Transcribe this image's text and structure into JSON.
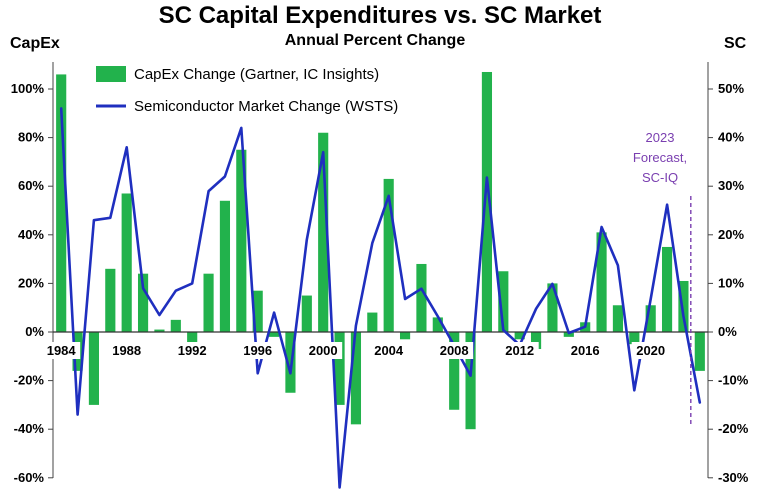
{
  "chart_data": {
    "type": "bar+line",
    "title": "SC Capital Expenditures vs. SC Market",
    "subtitle": "Annual Percent Change",
    "left_axis_label": "CapEx",
    "right_axis_label": "SC",
    "left_ylim": [
      -60,
      110
    ],
    "right_ylim": [
      -30,
      55
    ],
    "left_ticks": [
      "100%",
      "80%",
      "60%",
      "40%",
      "20%",
      "0%",
      "-20%",
      "-40%",
      "-60%"
    ],
    "left_tick_values": [
      100,
      80,
      60,
      40,
      20,
      0,
      -20,
      -40,
      -60
    ],
    "right_ticks": [
      "50%",
      "40%",
      "30%",
      "20%",
      "10%",
      "0%",
      "-10%",
      "-20%",
      "-30%"
    ],
    "right_tick_values": [
      50,
      40,
      30,
      20,
      10,
      0,
      -10,
      -20,
      -30
    ],
    "x_tick_labels": [
      "1984",
      "1988",
      "1992",
      "1996",
      "2000",
      "2004",
      "2008",
      "2012",
      "2016",
      "2020"
    ],
    "x_tick_years": [
      1984,
      1988,
      1992,
      1996,
      2000,
      2004,
      2008,
      2012,
      2016,
      2020
    ],
    "years": [
      1984,
      1985,
      1986,
      1987,
      1988,
      1989,
      1990,
      1991,
      1992,
      1993,
      1994,
      1995,
      1996,
      1997,
      1998,
      1999,
      2000,
      2001,
      2002,
      2003,
      2004,
      2005,
      2006,
      2007,
      2008,
      2009,
      2010,
      2011,
      2012,
      2013,
      2014,
      2015,
      2016,
      2017,
      2018,
      2019,
      2020,
      2021,
      2022,
      2023
    ],
    "series": [
      {
        "name": "CapEx Change  (Gartner, IC Insights)",
        "axis": "left",
        "kind": "bar",
        "color": "#22b24c",
        "values": [
          106,
          -16,
          -30,
          26,
          57,
          24,
          1,
          5,
          -6,
          24,
          54,
          75,
          17,
          -2,
          -25,
          15,
          82,
          -30,
          -38,
          8,
          63,
          -3,
          28,
          6,
          -32,
          -40,
          107,
          25,
          -3,
          -7,
          20,
          -2,
          4,
          41,
          11,
          -5,
          11,
          35,
          21,
          -16
        ]
      },
      {
        "name": "Semiconductor Market Change (WSTS)",
        "axis": "right",
        "kind": "line",
        "color": "#1f2fbf",
        "values": [
          46,
          -17,
          23,
          23.5,
          38,
          9,
          3.5,
          8.5,
          10,
          29,
          32,
          42,
          -8.5,
          4,
          -8.5,
          19,
          37,
          -32,
          1.3,
          18.3,
          28,
          6.8,
          8.9,
          3.2,
          -2.8,
          -9,
          31.8,
          0.4,
          -2.7,
          4.8,
          9.9,
          -0.2,
          1.1,
          21.6,
          13.7,
          -12,
          6.8,
          26.2,
          3.3,
          -14.5
        ]
      }
    ],
    "forecast_year": 2023,
    "annotation": "2023 Forecast, SC-IQ",
    "annotation_lines": [
      "2023",
      "Forecast,",
      "SC-IQ"
    ],
    "annotation_color": "#7a3fb0"
  }
}
